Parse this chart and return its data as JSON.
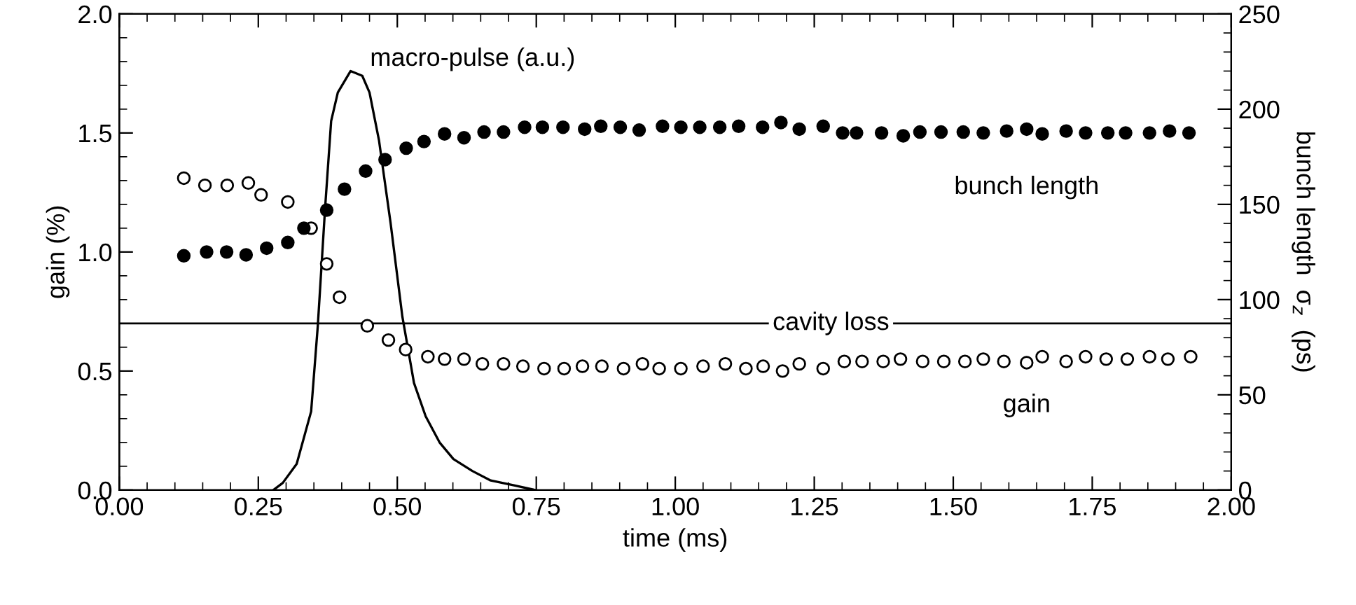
{
  "chart_data": {
    "type": "scatter",
    "xlabel": "time (ms)",
    "ylabel": "gain (%)",
    "y2label": "bunch length  σ$_{z}$  (ps)",
    "xlim": [
      0,
      2
    ],
    "xticks": [
      {
        "value": 0,
        "label": "0.00"
      },
      {
        "value": 0.25,
        "label": "0.25"
      },
      {
        "value": 0.5,
        "label": "0.50"
      },
      {
        "value": 0.75,
        "label": "0.75"
      },
      {
        "value": 1,
        "label": "1.00"
      },
      {
        "value": 1.25,
        "label": "1.25"
      },
      {
        "value": 1.5,
        "label": "1.50"
      },
      {
        "value": 1.75,
        "label": "1.75"
      },
      {
        "value": 2,
        "label": "2.00"
      }
    ],
    "ylim": [
      0,
      2
    ],
    "yticks": [
      {
        "value": 0,
        "label": "0.0"
      },
      {
        "value": 0.5,
        "label": "0.5"
      },
      {
        "value": 1,
        "label": "1.0"
      },
      {
        "value": 1.5,
        "label": "1.5"
      },
      {
        "value": 2,
        "label": "2.0"
      }
    ],
    "y2lim": [
      0,
      250
    ],
    "y2ticks": [
      0,
      50,
      100,
      150,
      200,
      250
    ],
    "grid": false,
    "marker": "circle",
    "ref_lines": [
      {
        "axis": "y",
        "value": 0.7,
        "label": "cavity loss",
        "color": "#000000"
      }
    ],
    "series": [
      {
        "name": "gain",
        "color": "#ffffff",
        "x": [
          0.116,
          0.154,
          0.194,
          0.232,
          0.255,
          0.303,
          0.345,
          0.373,
          0.396,
          0.446,
          0.484,
          0.515,
          0.555,
          0.585,
          0.62,
          0.653,
          0.691,
          0.726,
          0.764,
          0.8,
          0.833,
          0.868,
          0.907,
          0.941,
          0.971,
          1.01,
          1.05,
          1.09,
          1.127,
          1.158,
          1.193,
          1.223,
          1.266,
          1.304,
          1.336,
          1.374,
          1.405,
          1.445,
          1.483,
          1.521,
          1.554,
          1.591,
          1.632,
          1.66,
          1.703,
          1.738,
          1.775,
          1.813,
          1.853,
          1.886,
          1.927
        ],
        "values": [
          1.31,
          1.28,
          1.28,
          1.29,
          1.24,
          1.21,
          1.1,
          0.95,
          0.81,
          0.69,
          0.63,
          0.59,
          0.56,
          0.55,
          0.55,
          0.53,
          0.53,
          0.52,
          0.51,
          0.51,
          0.52,
          0.52,
          0.51,
          0.53,
          0.51,
          0.51,
          0.52,
          0.53,
          0.51,
          0.52,
          0.5,
          0.53,
          0.51,
          0.54,
          0.54,
          0.54,
          0.55,
          0.54,
          0.54,
          0.54,
          0.55,
          0.54,
          0.535,
          0.56,
          0.54,
          0.56,
          0.55,
          0.55,
          0.56,
          0.55,
          0.56
        ]
      },
      {
        "name": "bunch length",
        "axis": "y2",
        "color": "#000000",
        "x": [
          0.116,
          0.157,
          0.193,
          0.228,
          0.265,
          0.303,
          0.332,
          0.373,
          0.405,
          0.443,
          0.478,
          0.516,
          0.548,
          0.585,
          0.62,
          0.656,
          0.691,
          0.729,
          0.761,
          0.798,
          0.837,
          0.866,
          0.901,
          0.935,
          0.977,
          1.01,
          1.044,
          1.08,
          1.114,
          1.157,
          1.19,
          1.223,
          1.266,
          1.301,
          1.326,
          1.371,
          1.41,
          1.44,
          1.478,
          1.518,
          1.554,
          1.596,
          1.632,
          1.66,
          1.703,
          1.738,
          1.778,
          1.81,
          1.853,
          1.889,
          1.924
        ],
        "values": [
          123,
          125,
          125,
          123.5,
          127,
          130,
          137.5,
          147,
          158,
          167.5,
          173.5,
          179.5,
          183,
          187,
          185,
          188,
          188,
          190.5,
          190.5,
          190.5,
          189.5,
          191,
          190.5,
          189,
          191,
          190.5,
          190.5,
          190.5,
          191,
          190.5,
          193,
          189.5,
          191,
          187.5,
          187.5,
          187.5,
          186,
          188,
          188,
          188,
          187.5,
          188.5,
          189.5,
          187,
          188.5,
          187.5,
          187.5,
          187.5,
          187.5,
          188.5,
          187.5
        ]
      },
      {
        "name": "macro-pulse (a.u.)",
        "type": "line",
        "color": "#000000",
        "marker": "none",
        "line_style": "solid",
        "x": [
          0.277,
          0.294,
          0.319,
          0.345,
          0.357,
          0.37,
          0.381,
          0.393,
          0.416,
          0.437,
          0.45,
          0.467,
          0.488,
          0.509,
          0.53,
          0.551,
          0.576,
          0.601,
          0.635,
          0.668,
          0.71,
          0.748
        ],
        "values": [
          0,
          0.03,
          0.11,
          0.33,
          0.69,
          1.18,
          1.55,
          1.67,
          1.76,
          1.74,
          1.67,
          1.47,
          1.12,
          0.73,
          0.45,
          0.31,
          0.2,
          0.13,
          0.08,
          0.04,
          0.02,
          0
        ]
      }
    ]
  }
}
